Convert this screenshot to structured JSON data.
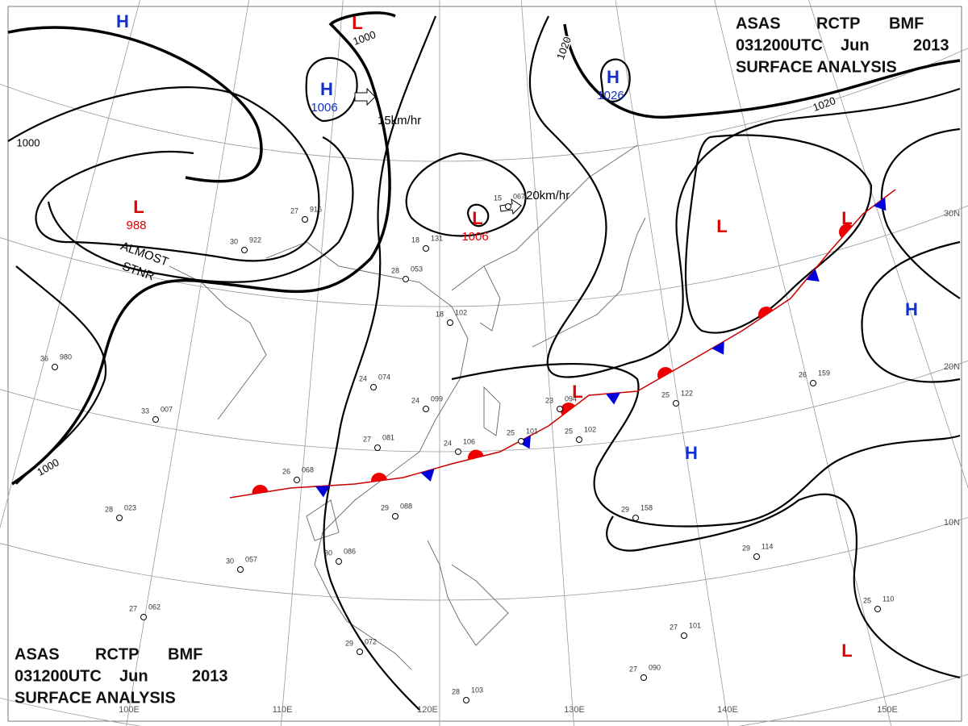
{
  "header": {
    "line1": [
      "ASAS",
      "RCTP",
      "BMF"
    ],
    "line2": [
      "031200UTC",
      "Jun",
      "2013"
    ],
    "line3": "SURFACE ANALYSIS"
  },
  "pressure_centers": [
    {
      "label": "H"
    },
    {
      "label": "L"
    },
    {
      "label": "H",
      "pressure": "1006"
    },
    {
      "label": "L",
      "pressure": "988"
    },
    {
      "label": "H",
      "pressure": "1026"
    },
    {
      "label": "L",
      "pressure": "1006"
    },
    {
      "label": "L"
    },
    {
      "label": "L"
    },
    {
      "label": "H"
    },
    {
      "label": "L"
    },
    {
      "label": "H"
    },
    {
      "label": "L"
    }
  ],
  "isobar_labels": [
    "1000",
    "1000",
    "1020",
    "1020",
    "1000"
  ],
  "motion_labels": [
    "15km/hr",
    "20km/hr",
    "ALMOST",
    "STNR"
  ],
  "longitude_labels": [
    "100E",
    "110E",
    "120E",
    "130E",
    "140E",
    "150E"
  ],
  "latitude_labels": [
    "30N",
    "20N",
    "10N"
  ],
  "stations": [
    {
      "temp": "26",
      "pressure": "068"
    },
    {
      "temp": "29",
      "pressure": "088"
    },
    {
      "temp": "24",
      "pressure": "106"
    },
    {
      "temp": "25",
      "pressure": "101"
    },
    {
      "temp": "23",
      "pressure": "094"
    },
    {
      "temp": "25",
      "pressure": "102"
    },
    {
      "temp": "24",
      "pressure": "099"
    },
    {
      "temp": "27",
      "pressure": "081"
    },
    {
      "temp": "24",
      "pressure": "074"
    },
    {
      "temp": "25",
      "pressure": "122"
    },
    {
      "temp": "26",
      "pressure": "159"
    },
    {
      "temp": "29",
      "pressure": "158"
    },
    {
      "temp": "29",
      "pressure": "114"
    },
    {
      "temp": "25",
      "pressure": "110"
    },
    {
      "temp": "27",
      "pressure": "101"
    },
    {
      "temp": "27",
      "pressure": "090"
    },
    {
      "temp": "28",
      "pressure": "103"
    },
    {
      "temp": "29",
      "pressure": "072"
    },
    {
      "temp": "30",
      "pressure": "086"
    },
    {
      "temp": "30",
      "pressure": "057"
    },
    {
      "temp": "27",
      "pressure": "062"
    },
    {
      "temp": "28",
      "pressure": "023"
    },
    {
      "temp": "33",
      "pressure": "007"
    },
    {
      "temp": "36",
      "pressure": "980"
    },
    {
      "temp": "30",
      "pressure": "922"
    },
    {
      "temp": "27",
      "pressure": "916"
    },
    {
      "temp": "18",
      "pressure": "131"
    },
    {
      "temp": "28",
      "pressure": "053"
    },
    {
      "temp": "18",
      "pressure": "102"
    },
    {
      "temp": "15",
      "pressure": "067"
    }
  ]
}
